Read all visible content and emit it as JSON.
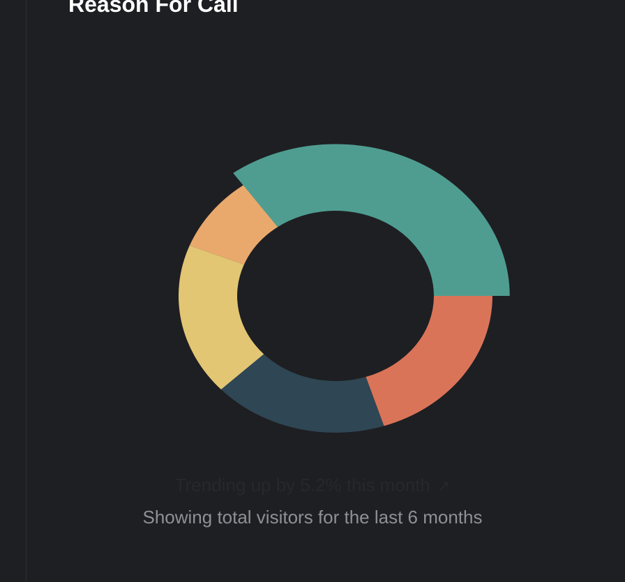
{
  "card": {
    "title": "Reason For Call"
  },
  "footer": {
    "trend_text": "Trending up by 5.2% this month",
    "trend_icon": "trending-up-icon",
    "caption": "Showing total visitors for the last 6 months"
  },
  "chart_data": {
    "type": "pie",
    "variant": "donut",
    "title": "Reason For Call",
    "legend": "none",
    "slices": [
      {
        "value": 35,
        "color": "#4f9d91",
        "active": true
      },
      {
        "value": 9,
        "color": "#e9a96d",
        "active": false
      },
      {
        "value": 18,
        "color": "#e2c674",
        "active": false
      },
      {
        "value": 18,
        "color": "#2f4654",
        "active": false
      },
      {
        "value": 20,
        "color": "#da7459",
        "active": false
      }
    ]
  }
}
